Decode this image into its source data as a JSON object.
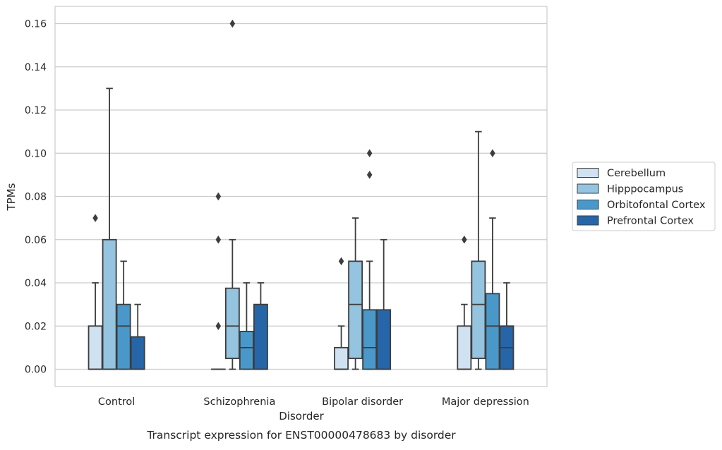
{
  "chart_data": {
    "type": "box",
    "caption": "Transcript expression for ENST00000478683 by disorder",
    "xlabel": "Disorder",
    "ylabel": "TPMs",
    "ylim": [
      -0.008,
      0.168
    ],
    "yticks": [
      0.0,
      0.02,
      0.04,
      0.06,
      0.08,
      0.1,
      0.12,
      0.14,
      0.16
    ],
    "ytick_labels": [
      "0.00",
      "0.02",
      "0.04",
      "0.06",
      "0.08",
      "0.10",
      "0.12",
      "0.14",
      "0.16"
    ],
    "grid": "horizontal",
    "legend_position": "right",
    "categories": [
      "Control",
      "Schizophrenia",
      "Bipolar disorder",
      "Major depression"
    ],
    "series": [
      {
        "name": "Cerebellum",
        "color": "#d0e1f2",
        "boxes": [
          {
            "whislo": 0.0,
            "q1": 0.0,
            "med": 0.0,
            "q3": 0.02,
            "whishi": 0.04,
            "fliers": [
              0.07
            ]
          },
          {
            "whislo": 0.0,
            "q1": 0.0,
            "med": 0.0,
            "q3": 0.0,
            "whishi": 0.0,
            "fliers": [
              0.02,
              0.06,
              0.08
            ]
          },
          {
            "whislo": 0.0,
            "q1": 0.0,
            "med": 0.0,
            "q3": 0.01,
            "whishi": 0.02,
            "fliers": [
              0.05
            ]
          },
          {
            "whislo": 0.0,
            "q1": 0.0,
            "med": 0.0,
            "q3": 0.02,
            "whishi": 0.03,
            "fliers": [
              0.06
            ]
          }
        ]
      },
      {
        "name": "Hipppocampus",
        "color": "#94c4df",
        "boxes": [
          {
            "whislo": 0.0,
            "q1": 0.0,
            "med": 0.0,
            "q3": 0.06,
            "whishi": 0.13,
            "fliers": []
          },
          {
            "whislo": 0.0,
            "q1": 0.005,
            "med": 0.02,
            "q3": 0.0375,
            "whishi": 0.06,
            "fliers": [
              0.16
            ]
          },
          {
            "whislo": 0.0,
            "q1": 0.005,
            "med": 0.03,
            "q3": 0.05,
            "whishi": 0.07,
            "fliers": []
          },
          {
            "whislo": 0.0,
            "q1": 0.005,
            "med": 0.03,
            "q3": 0.05,
            "whishi": 0.11,
            "fliers": []
          }
        ]
      },
      {
        "name": "Orbitofontal Cortex",
        "color": "#4a98c9",
        "boxes": [
          {
            "whislo": 0.0,
            "q1": 0.0,
            "med": 0.02,
            "q3": 0.03,
            "whishi": 0.05,
            "fliers": []
          },
          {
            "whislo": 0.0,
            "q1": 0.0,
            "med": 0.01,
            "q3": 0.0175,
            "whishi": 0.04,
            "fliers": []
          },
          {
            "whislo": 0.0,
            "q1": 0.0,
            "med": 0.01,
            "q3": 0.0275,
            "whishi": 0.05,
            "fliers": [
              0.09,
              0.1
            ]
          },
          {
            "whislo": 0.0,
            "q1": 0.0,
            "med": 0.02,
            "q3": 0.035,
            "whishi": 0.07,
            "fliers": [
              0.1
            ]
          }
        ]
      },
      {
        "name": "Prefrontal Cortex",
        "color": "#2666a8",
        "boxes": [
          {
            "whislo": 0.0,
            "q1": 0.0,
            "med": 0.0,
            "q3": 0.015,
            "whishi": 0.03,
            "fliers": []
          },
          {
            "whislo": 0.0,
            "q1": 0.0,
            "med": 0.0,
            "q3": 0.03,
            "whishi": 0.04,
            "fliers": []
          },
          {
            "whislo": 0.0,
            "q1": 0.0,
            "med": 0.0,
            "q3": 0.0275,
            "whishi": 0.06,
            "fliers": []
          },
          {
            "whislo": 0.0,
            "q1": 0.0,
            "med": 0.01,
            "q3": 0.02,
            "whishi": 0.04,
            "fliers": []
          }
        ]
      }
    ]
  }
}
